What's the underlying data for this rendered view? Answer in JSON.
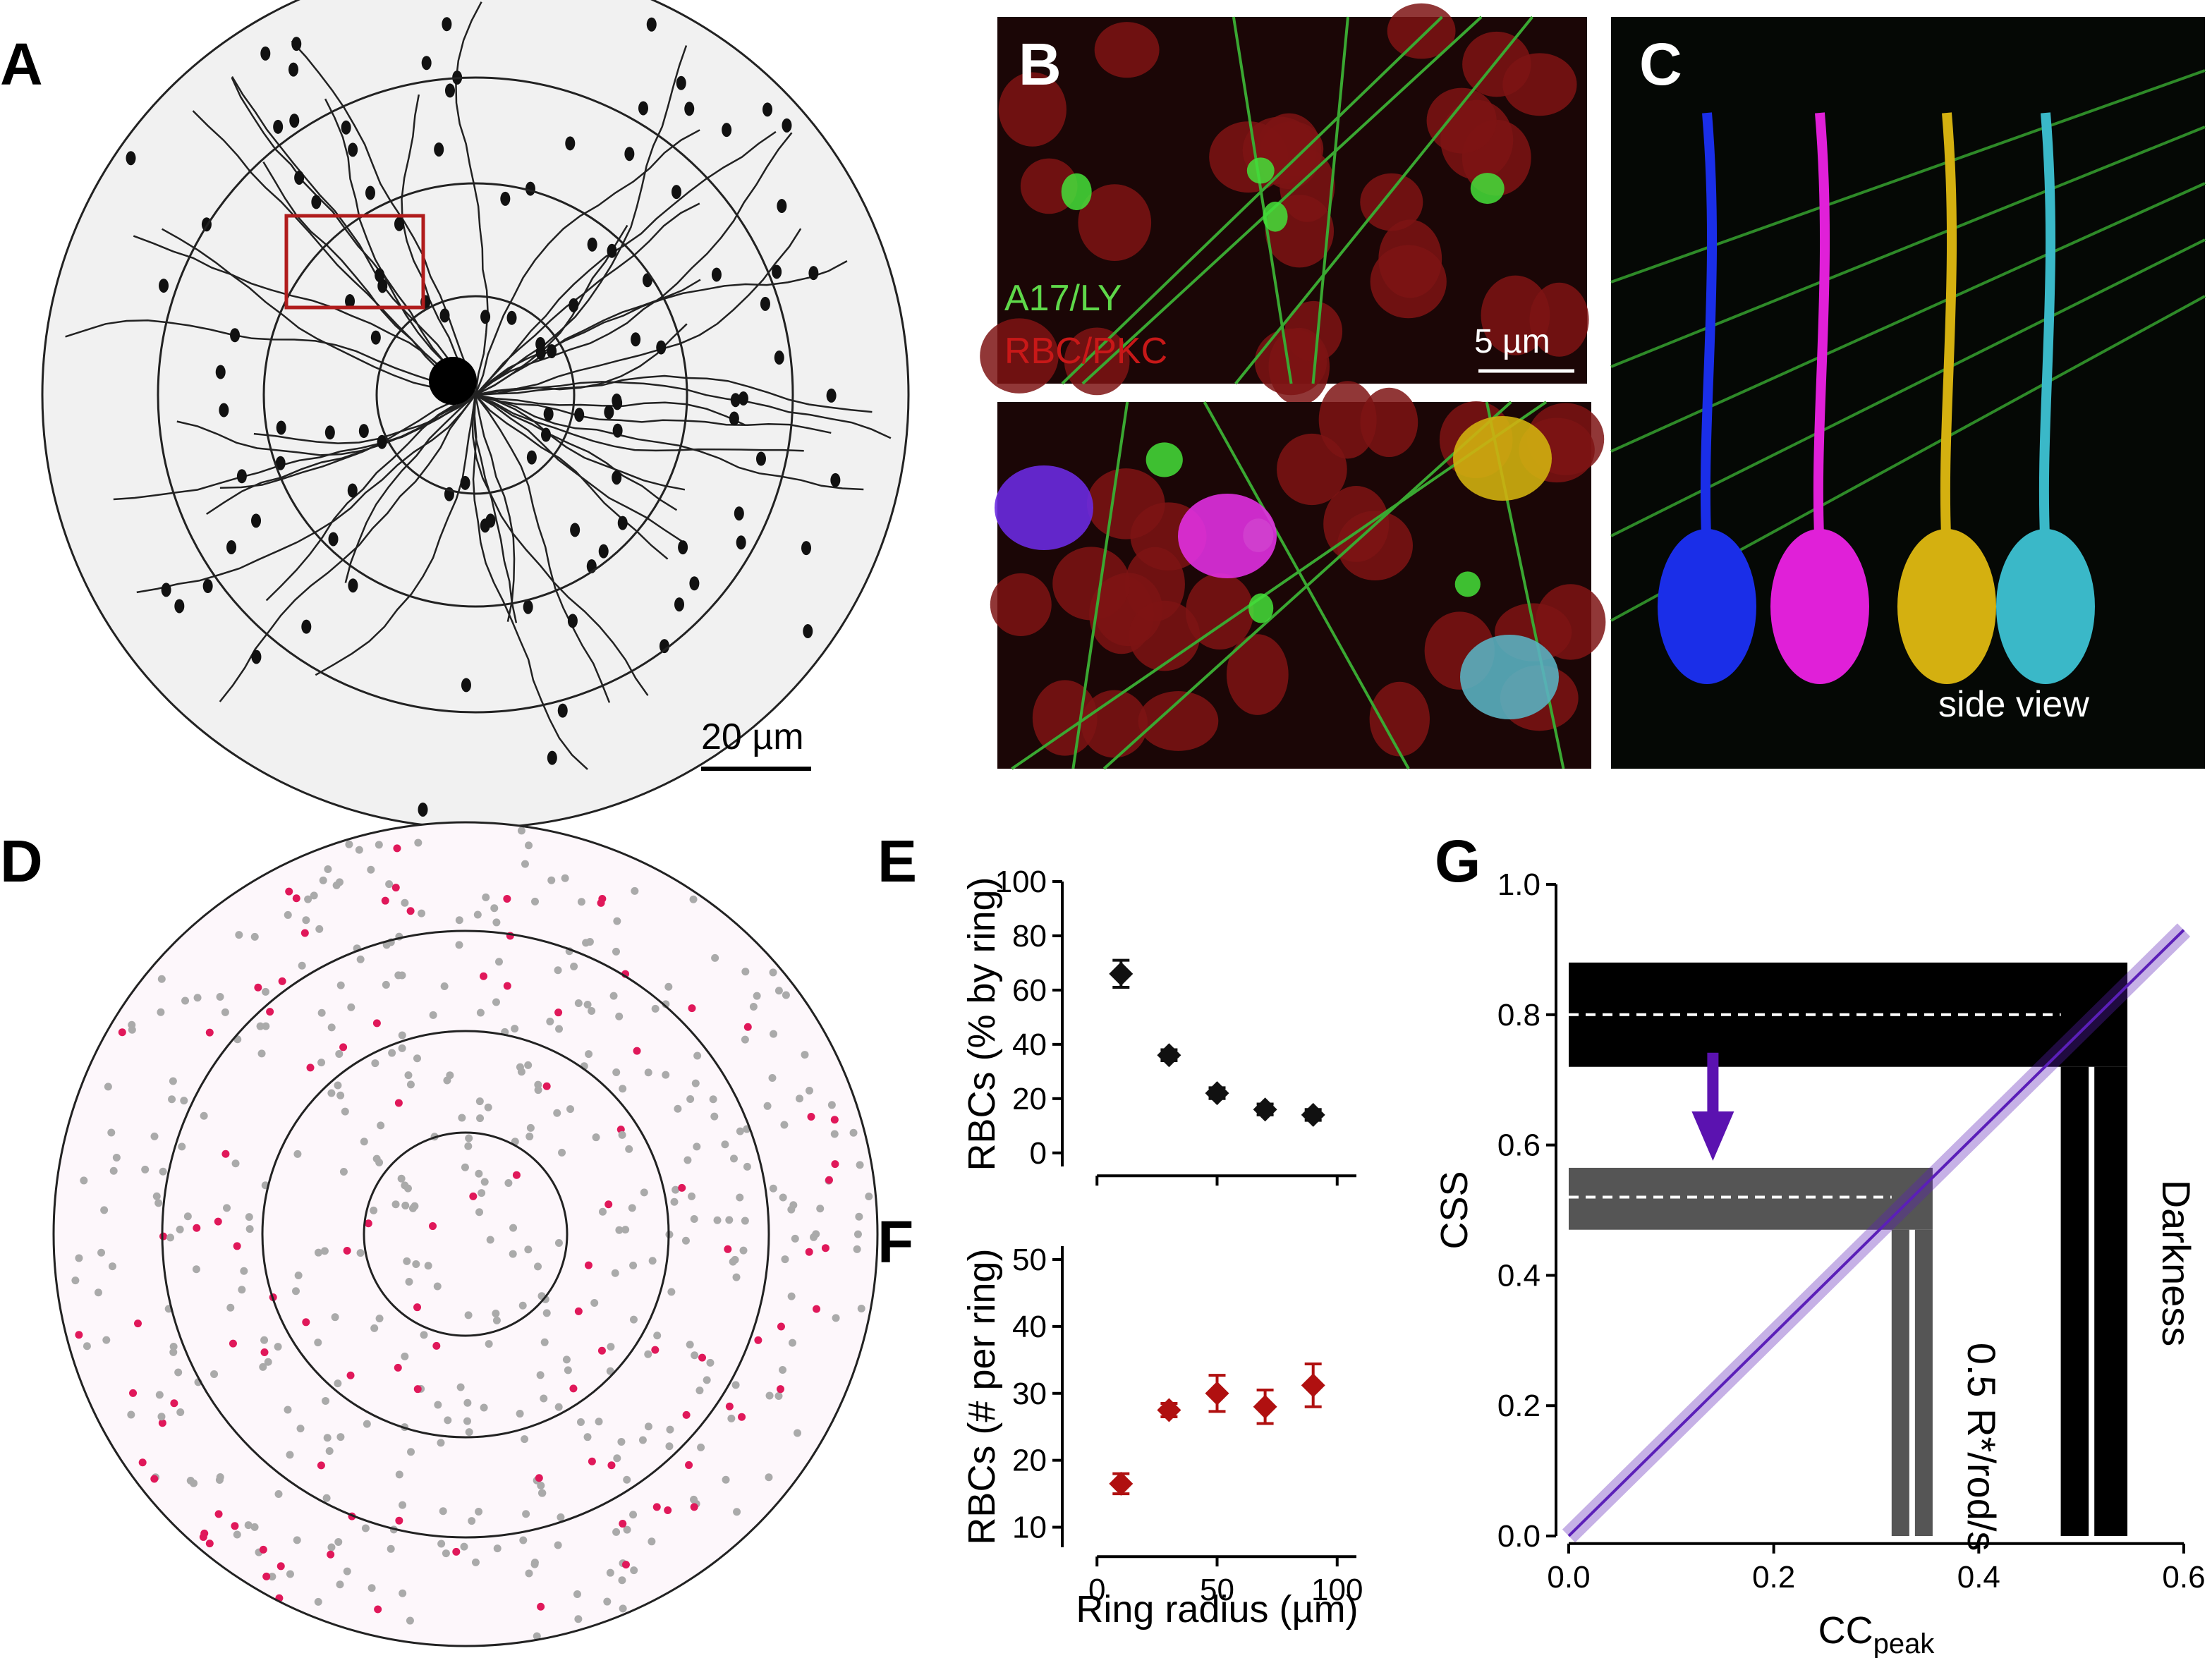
{
  "panel_labels": [
    "A",
    "B",
    "C",
    "D",
    "E",
    "F",
    "G"
  ],
  "image_labels": {
    "a_scale": "20 µm",
    "b_green": "A17/LY",
    "b_red": "RBC/PKC",
    "b_scale": "5 µm",
    "c_note": "side view"
  },
  "chart_data": [
    {
      "type": "scatter",
      "ylabel": "RBCs (% by ring)",
      "x": [
        10,
        30,
        50,
        70,
        90
      ],
      "values": [
        66,
        36,
        22,
        16,
        14
      ],
      "errors": [
        5,
        2,
        2,
        2,
        2
      ],
      "color": "#111111",
      "xlim": [
        -8,
        108
      ],
      "ylim": [
        -5,
        100
      ],
      "xticks": [
        0,
        50,
        100
      ],
      "show_xtick_labels": false,
      "yticks": [
        0,
        20,
        40,
        60,
        80,
        100
      ]
    },
    {
      "type": "scatter",
      "xlabel": "Ring radius (µm)",
      "ylabel": "RBCs (# per ring)",
      "x": [
        10,
        30,
        50,
        70,
        90
      ],
      "values": [
        16.5,
        27.5,
        30,
        28,
        31.2
      ],
      "errors": [
        1.5,
        1,
        2.7,
        2.5,
        3.2
      ],
      "color": "#b01010",
      "xlim": [
        -8,
        108
      ],
      "ylim": [
        7,
        52
      ],
      "xticks": [
        0,
        50,
        100
      ],
      "show_xtick_labels": true,
      "yticks": [
        10,
        20,
        30,
        40,
        50
      ]
    },
    {
      "type": "line",
      "xlabel": "CC",
      "xlabel_sub": "peak",
      "ylabel": "CSS",
      "x": [
        0,
        0.6
      ],
      "values": [
        0,
        0.93
      ],
      "color": "#5b1fb8",
      "xlim": [
        0,
        0.6
      ],
      "ylim": [
        0,
        1
      ],
      "xticks": [
        {
          "value": 0,
          "label": "0.0"
        },
        0.2,
        0.4,
        0.6
      ],
      "yticks": [
        {
          "value": 0,
          "label": "0.0"
        },
        0.2,
        0.4,
        0.6,
        0.8,
        {
          "value": 1,
          "label": "1.0"
        }
      ],
      "conditions": [
        {
          "label": "Darkness",
          "color": "#000000",
          "css": 0.8,
          "css_range": [
            0.72,
            0.88
          ],
          "cc": 0.51,
          "cc_range": [
            0.48,
            0.545
          ]
        },
        {
          "label": "0.5 R*/rod/s",
          "color": "#555555",
          "css": 0.52,
          "css_range": [
            0.47,
            0.565
          ],
          "cc": 0.335,
          "cc_range": [
            0.315,
            0.355
          ]
        }
      ]
    }
  ]
}
